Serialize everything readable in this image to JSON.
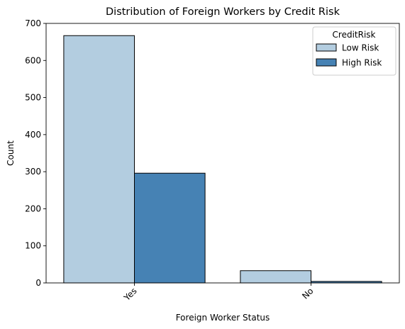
{
  "chart_data": {
    "type": "bar",
    "title": "Distribution of Foreign Workers by Credit Risk",
    "xlabel": "Foreign Worker Status",
    "ylabel": "Count",
    "categories": [
      "Yes",
      "No"
    ],
    "series": [
      {
        "name": "Low Risk",
        "values": [
          667,
          33
        ],
        "color": "#b3cde0"
      },
      {
        "name": "High Risk",
        "values": [
          296,
          4
        ],
        "color": "#4682b4"
      }
    ],
    "ylim": [
      0,
      700
    ],
    "yticks": [
      0,
      100,
      200,
      300,
      400,
      500,
      600,
      700
    ],
    "grid": false,
    "legend": {
      "title": "CreditRisk",
      "placement": "top-right"
    }
  }
}
